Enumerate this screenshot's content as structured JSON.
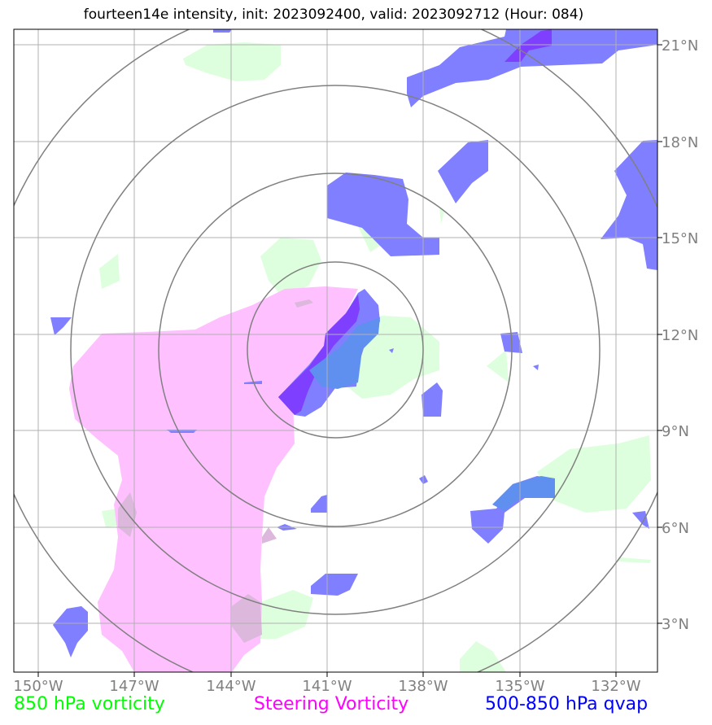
{
  "title": "fourteen14e intensity, init: 2023092400, valid: 2023092712 (Hour: 084)",
  "legend": [
    {
      "label": "850 hPa vorticity",
      "color": "#00ff00"
    },
    {
      "label": "Steering Vorticity",
      "color": "#ff00ff"
    },
    {
      "label": "500-850 hPa qvap",
      "color": "#0000ff"
    }
  ],
  "x_ticks": [
    "150°W",
    "147°W",
    "144°W",
    "141°W",
    "138°W",
    "135°W",
    "132°W"
  ],
  "y_ticks": [
    "21°N",
    "18°N",
    "15°N",
    "12°N",
    "9°N",
    "6°N",
    "3°N"
  ],
  "colors": {
    "vort850": "#ddffdd",
    "steering": "#ffc0ff",
    "qvap": "#7f7fff",
    "qvap_dark": "#7f3fff",
    "grid": "#b0b0b0",
    "rings": "#808080"
  },
  "center": {
    "lon": -140.8,
    "lat": 11.6
  }
}
